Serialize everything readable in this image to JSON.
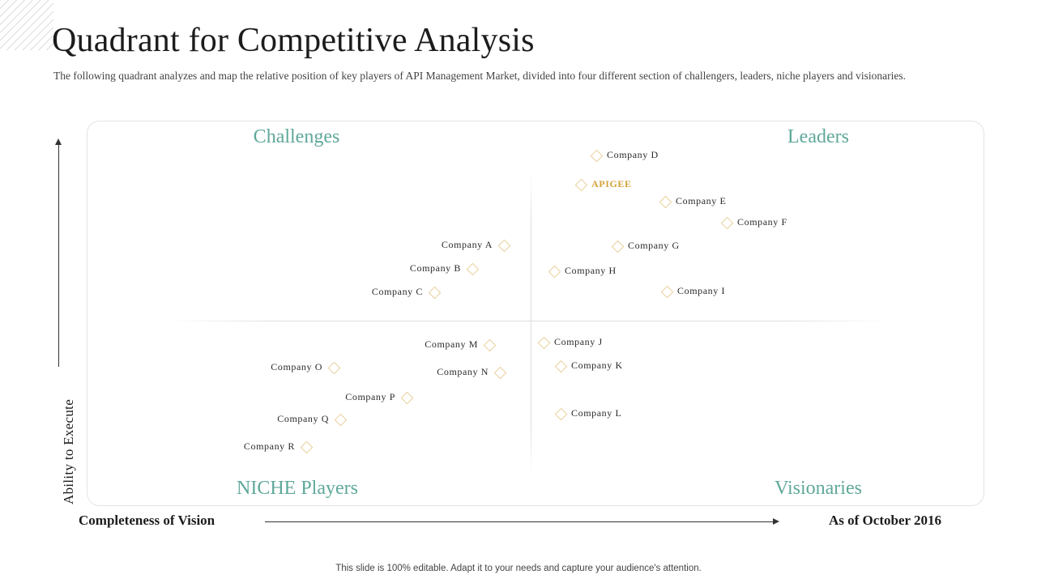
{
  "title": "Quadrant for Competitive Analysis",
  "subtitle": "The following quadrant analyzes and map the relative position of  key players of API Management Market, divided into four different section of challengers, leaders, niche players and visionaries.",
  "quadrants": {
    "top_left": "Challenges",
    "top_right": "Leaders",
    "bottom_left": "NICHE Players",
    "bottom_right": "Visionaries"
  },
  "axes": {
    "y_label": "Ability to Execute",
    "x_label": "Completeness of Vision",
    "date": "As of October 2016"
  },
  "companies": [
    {
      "name": "Company  D"
    },
    {
      "name": "APIGEE",
      "highlight": true
    },
    {
      "name": "Company  E"
    },
    {
      "name": "Company  F"
    },
    {
      "name": "Company  G"
    },
    {
      "name": "Company  H"
    },
    {
      "name": "Company  I"
    },
    {
      "name": "Company  A"
    },
    {
      "name": "Company  B"
    },
    {
      "name": "Company  C"
    },
    {
      "name": "Company  J"
    },
    {
      "name": "Company  K"
    },
    {
      "name": "Company  L"
    },
    {
      "name": "Company  M"
    },
    {
      "name": "Company  N"
    },
    {
      "name": "Company  O"
    },
    {
      "name": "Company  P"
    },
    {
      "name": "Company  Q"
    },
    {
      "name": "Company  R"
    }
  ],
  "colors": {
    "quadrant_label": "#5fa89a",
    "highlight": "#d4a23a",
    "marker_border": "#e8cf9a"
  },
  "footer": "This slide is 100% editable. Adapt it to your needs and capture your audience's attention."
}
